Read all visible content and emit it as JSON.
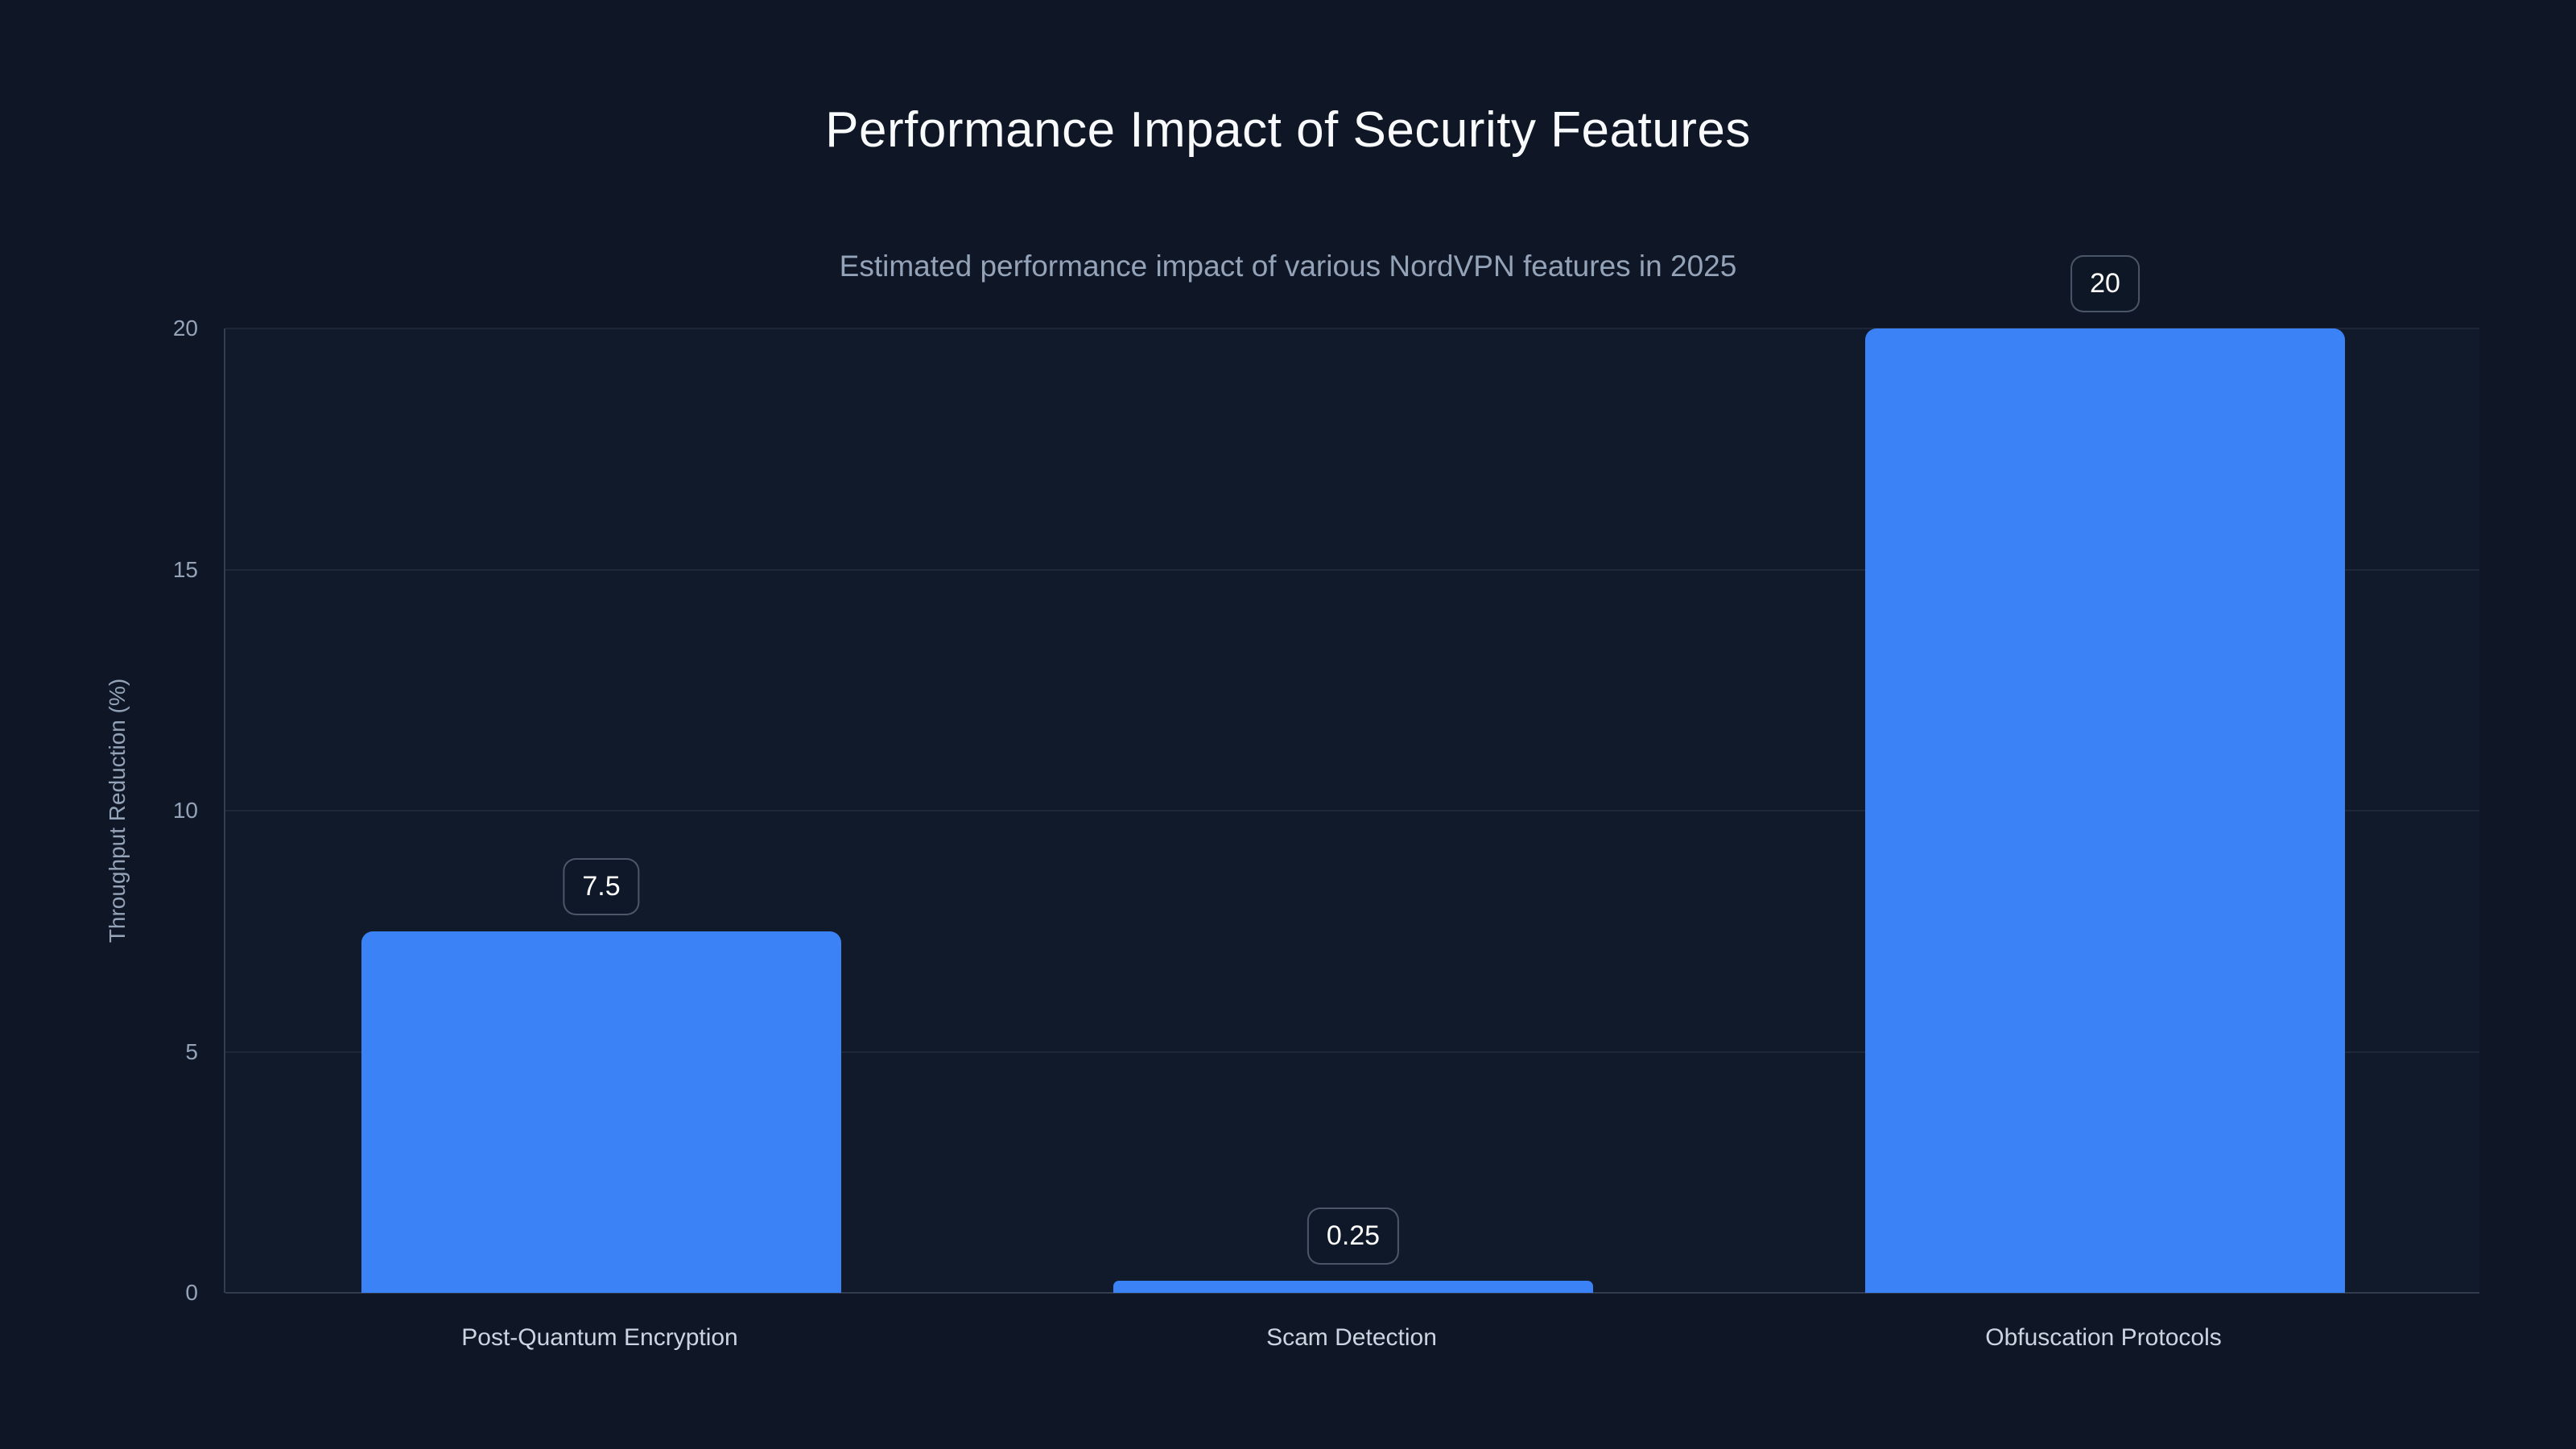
{
  "page": {
    "background_color": "#0f1727",
    "accent_color": "#3b82f6",
    "title_color": "#f8fafc",
    "muted_text_color": "#94a3b8",
    "category_label_color": "#cbd5e1"
  },
  "chart_data": {
    "type": "bar",
    "title": "Performance Impact of Security Features",
    "subtitle": "Estimated performance impact of various NordVPN features in 2025",
    "categories": [
      "Post-Quantum Encryption",
      "Scam Detection",
      "Obfuscation Protocols"
    ],
    "values": [
      7.5,
      0.25,
      20
    ],
    "value_labels": [
      "7.5",
      "0.25",
      "20"
    ],
    "xlabel": "",
    "ylabel": "Throughput Reduction (%)",
    "ylim": [
      0,
      20
    ],
    "yticks": [
      0,
      5,
      10,
      15,
      20
    ],
    "grid": "horizontal gridlines on",
    "legend_position": "none",
    "bar_color": "#3b82f6",
    "value_label_style": "boxed label above each bar"
  }
}
